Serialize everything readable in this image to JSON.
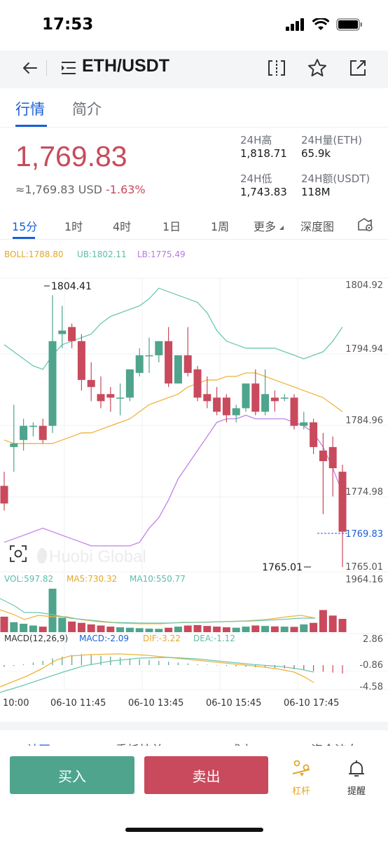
{
  "status": {
    "time": "17:53"
  },
  "header": {
    "pair": "ETH/USDT"
  },
  "tabs": [
    {
      "label": "行情"
    },
    {
      "label": "简介"
    }
  ],
  "price": {
    "last": "1,769.83",
    "usd": "≈1,769.83 USD",
    "change": "-1.63%"
  },
  "stats": {
    "high_label": "24H高",
    "high_value": "1,818.71",
    "low_label": "24H低",
    "low_value": "1,743.83",
    "vol_label": "24H量(ETH)",
    "vol_value": "65.9k",
    "amount_label": "24H额(USDT)",
    "amount_value": "118M"
  },
  "timeframes": [
    "15分",
    "1时",
    "4时",
    "1日",
    "1周",
    "更多",
    "深度图"
  ],
  "chart_data": {
    "type": "candlestick",
    "indicators": {
      "boll": "BOLL:1788.80",
      "ub": "UB:1802.11",
      "lb": "LB:1775.49"
    },
    "price_axis": [
      "1804.92",
      "1794.94",
      "1784.96",
      "1774.98",
      "1765.01"
    ],
    "ylim": [
      1765.01,
      1804.92
    ],
    "last_price_label": "1769.83",
    "max_label": "1804.41",
    "min_label": "1765.01",
    "watermark": "Huobi Global",
    "candles": [
      {
        "o": 1776.5,
        "h": 1778.5,
        "l": 1773.0,
        "c": 1774.0
      },
      {
        "o": 1782.0,
        "h": 1788.0,
        "l": 1778.5,
        "c": 1782.5
      },
      {
        "o": 1783.0,
        "h": 1786.0,
        "l": 1781.5,
        "c": 1785.0
      },
      {
        "o": 1785.0,
        "h": 1785.5,
        "l": 1783.5,
        "c": 1785.0
      },
      {
        "o": 1785.0,
        "h": 1786.0,
        "l": 1782.5,
        "c": 1783.0
      },
      {
        "o": 1785.0,
        "h": 1803.5,
        "l": 1784.0,
        "c": 1797.0
      },
      {
        "o": 1798.0,
        "h": 1802.0,
        "l": 1796.0,
        "c": 1798.5
      },
      {
        "o": 1799.0,
        "h": 1799.5,
        "l": 1796.0,
        "c": 1797.0
      },
      {
        "o": 1797.0,
        "h": 1798.0,
        "l": 1790.0,
        "c": 1791.5
      },
      {
        "o": 1791.5,
        "h": 1794.0,
        "l": 1788.5,
        "c": 1790.5
      },
      {
        "o": 1789.5,
        "h": 1792.0,
        "l": 1787.5,
        "c": 1788.5
      },
      {
        "o": 1789.5,
        "h": 1790.5,
        "l": 1787.0,
        "c": 1789.0
      },
      {
        "o": 1789.0,
        "h": 1791.0,
        "l": 1786.5,
        "c": 1789.0
      },
      {
        "o": 1789.0,
        "h": 1793.0,
        "l": 1788.5,
        "c": 1793.0
      },
      {
        "o": 1792.5,
        "h": 1796.0,
        "l": 1792.0,
        "c": 1795.0
      },
      {
        "o": 1795.0,
        "h": 1797.5,
        "l": 1792.5,
        "c": 1795.0
      },
      {
        "o": 1795.0,
        "h": 1797.0,
        "l": 1794.0,
        "c": 1797.0
      },
      {
        "o": 1797.0,
        "h": 1799.0,
        "l": 1790.5,
        "c": 1791.0
      },
      {
        "o": 1791.0,
        "h": 1795.0,
        "l": 1791.0,
        "c": 1795.0
      },
      {
        "o": 1795.0,
        "h": 1799.0,
        "l": 1792.0,
        "c": 1792.5
      },
      {
        "o": 1793.0,
        "h": 1793.5,
        "l": 1788.5,
        "c": 1789.0
      },
      {
        "o": 1789.5,
        "h": 1792.0,
        "l": 1787.5,
        "c": 1788.5
      },
      {
        "o": 1789.0,
        "h": 1790.5,
        "l": 1786.5,
        "c": 1787.0
      },
      {
        "o": 1789.0,
        "h": 1789.5,
        "l": 1785.5,
        "c": 1786.5
      },
      {
        "o": 1786.5,
        "h": 1788.0,
        "l": 1785.5,
        "c": 1787.5
      },
      {
        "o": 1787.5,
        "h": 1791.0,
        "l": 1787.0,
        "c": 1791.0
      },
      {
        "o": 1791.0,
        "h": 1793.0,
        "l": 1786.5,
        "c": 1787.0
      },
      {
        "o": 1787.0,
        "h": 1793.0,
        "l": 1786.5,
        "c": 1789.5
      },
      {
        "o": 1789.0,
        "h": 1790.0,
        "l": 1787.0,
        "c": 1788.5
      },
      {
        "o": 1789.0,
        "h": 1789.5,
        "l": 1788.5,
        "c": 1789.0
      },
      {
        "o": 1789.0,
        "h": 1789.5,
        "l": 1784.5,
        "c": 1785.0
      },
      {
        "o": 1785.0,
        "h": 1787.0,
        "l": 1784.5,
        "c": 1785.5
      },
      {
        "o": 1785.5,
        "h": 1786.0,
        "l": 1781.0,
        "c": 1782.0
      },
      {
        "o": 1781.5,
        "h": 1784.0,
        "l": 1772.5,
        "c": 1780.0
      },
      {
        "o": 1782.0,
        "h": 1783.5,
        "l": 1775.0,
        "c": 1779.0
      },
      {
        "o": 1778.5,
        "h": 1779.5,
        "l": 1765.0,
        "c": 1770.0
      }
    ],
    "ub_line": [
      1796.5,
      1795.5,
      1794.5,
      1793.5,
      1793.0,
      1795.0,
      1796.5,
      1797.0,
      1797.5,
      1798.0,
      1799.5,
      1800.5,
      1801.0,
      1801.5,
      1802.0,
      1803.0,
      1804.5,
      1804.0,
      1803.5,
      1803.0,
      1802.5,
      1801.0,
      1798.5,
      1797.0,
      1796.5,
      1796.0,
      1796.0,
      1796.0,
      1796.0,
      1795.5,
      1795.0,
      1794.5,
      1795.0,
      1795.5,
      1797.0,
      1799.0
    ],
    "boll_line": [
      1783.0,
      1782.5,
      1782.5,
      1782.5,
      1782.5,
      1782.5,
      1783.0,
      1783.5,
      1784.0,
      1784.0,
      1784.5,
      1785.0,
      1785.5,
      1786.0,
      1787.0,
      1788.0,
      1788.5,
      1789.0,
      1789.5,
      1790.5,
      1791.0,
      1791.5,
      1791.5,
      1792.0,
      1792.0,
      1792.5,
      1792.5,
      1792.0,
      1791.5,
      1791.0,
      1790.5,
      1790.0,
      1789.5,
      1789.0,
      1788.0,
      1787.0
    ],
    "lb_line": [
      1768.5,
      1769.0,
      1769.5,
      1770.0,
      1770.5,
      1770.0,
      1769.5,
      1769.0,
      1768.5,
      1768.0,
      1768.0,
      1768.0,
      1768.0,
      1768.0,
      1768.5,
      1770.5,
      1772.0,
      1774.5,
      1777.5,
      1779.5,
      1781.5,
      1783.5,
      1785.5,
      1786.0,
      1786.0,
      1786.5,
      1786.0,
      1786.0,
      1786.0,
      1786.0,
      1785.5,
      1785.0,
      1784.0,
      1782.0,
      1779.0,
      1775.5
    ],
    "volume": {
      "vol_label": "VOL:597.82",
      "ma5_label": "MA5:730.32",
      "ma10_label": "MA10:550.77",
      "axis_max": "1964.16",
      "values": [
        700,
        450,
        380,
        300,
        250,
        1964,
        650,
        480,
        420,
        350,
        300,
        250,
        220,
        200,
        180,
        160,
        150,
        200,
        250,
        300,
        320,
        280,
        250,
        220,
        200,
        250,
        300,
        280,
        260,
        250,
        240,
        350,
        420,
        1000,
        750,
        600
      ]
    },
    "macd": {
      "label": "MACD(12,26,9)",
      "macd_label": "MACD:-2.09",
      "dif_label": "DIF:-3.22",
      "dea_label": "DEA:-1.12",
      "axis": [
        "2.86",
        "-0.86",
        "-4.58"
      ]
    },
    "time_axis": [
      "10:00",
      "06-10 11:45",
      "06-10 13:45",
      "06-10 15:45",
      "06-10 17:45"
    ]
  },
  "bottom_tabs": [
    "社区",
    "委托挂单",
    "成交",
    "资金流向"
  ],
  "actions": {
    "buy": "买入",
    "sell": "卖出",
    "leverage": "杠杆",
    "alert": "提醒"
  }
}
